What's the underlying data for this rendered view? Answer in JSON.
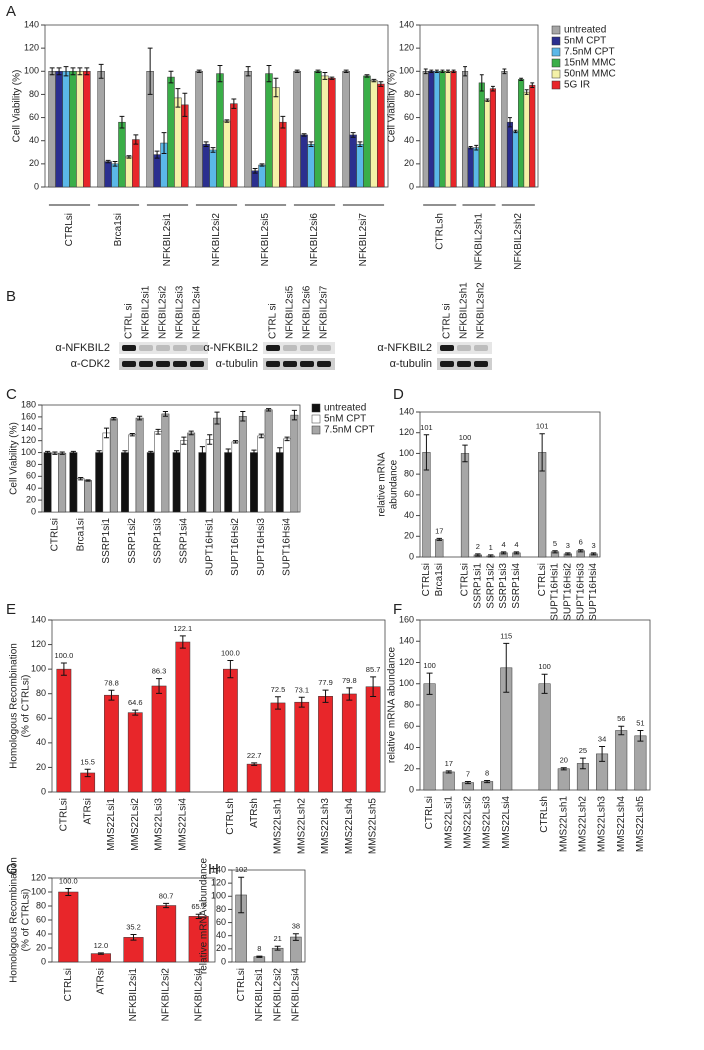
{
  "panel_letters": [
    "A",
    "B",
    "C",
    "D",
    "E",
    "F",
    "G",
    "H"
  ],
  "blots": [
    {
      "lanes": [
        "CTRL si",
        "NFKBIL2si1",
        "NFKBIL2si2",
        "NFKBIL2si3",
        "NFKBIL2si4"
      ],
      "rows": [
        "α-NFKBIL2",
        "α-CDK2"
      ]
    },
    {
      "lanes": [
        "CTRL si",
        "NFKBIL2si5",
        "NFKBIL2si6",
        "NFKBIL2si7"
      ],
      "rows": [
        "α-NFKBIL2",
        "α-tubulin"
      ]
    },
    {
      "lanes": [
        "CTRL si",
        "NFKBIL2sh1",
        "NFKBIL2sh2"
      ],
      "rows": [
        "α-NFKBIL2",
        "α-tubulin"
      ]
    }
  ],
  "chart_data": [
    {
      "type": "bar",
      "ylabel": "Cell Viability (%)",
      "categories": [
        "CTRLsi",
        "Brca1si",
        "NFKBIL2si1",
        "NFKBIL2si2",
        "NFKBIL2si5",
        "NFKBIL2si6",
        "NFKBIL2si7"
      ],
      "series": [
        {
          "name": "untreated",
          "color": "#a6a6a6",
          "values": [
            100,
            100,
            100,
            100,
            100,
            100,
            100
          ],
          "errors": [
            3,
            6,
            20,
            1,
            4,
            1,
            1
          ]
        },
        {
          "name": "5nM CPT",
          "color": "#2b2f8f",
          "values": [
            100,
            22,
            28,
            37,
            14,
            45,
            45
          ],
          "errors": [
            3,
            1,
            3,
            2,
            2,
            1,
            2
          ]
        },
        {
          "name": "7.5nM CPT",
          "color": "#5bb8e8",
          "values": [
            100,
            20,
            38,
            32,
            19,
            37,
            37
          ],
          "errors": [
            4,
            2,
            9,
            2,
            1,
            2,
            2
          ]
        },
        {
          "name": "15nM MMC",
          "color": "#3aae48",
          "values": [
            100,
            56,
            95,
            98,
            98,
            100,
            96
          ],
          "errors": [
            3,
            5,
            5,
            7,
            7,
            1,
            1
          ]
        },
        {
          "name": "50nM MMC",
          "color": "#f4f1a8",
          "values": [
            100,
            26,
            77,
            57,
            86,
            96,
            92
          ],
          "errors": [
            3,
            1,
            8,
            1,
            8,
            3,
            1
          ]
        },
        {
          "name": "5G IR",
          "color": "#e8262a",
          "values": [
            100,
            41,
            71,
            72,
            56,
            94,
            89
          ],
          "errors": [
            3,
            4,
            10,
            4,
            5,
            1,
            2
          ]
        }
      ],
      "ylim": [
        0,
        140
      ],
      "yticks": [
        0,
        20,
        40,
        60,
        80,
        100,
        120,
        140
      ],
      "group_lines": true
    },
    {
      "type": "bar",
      "ylabel": "Cell Viability (%)",
      "categories": [
        "CTRLsh",
        "NFKBIL2sh1",
        "NFKBIL2sh2"
      ],
      "series": [
        {
          "name": "untreated",
          "color": "#a6a6a6",
          "values": [
            100,
            100,
            100
          ],
          "errors": [
            2,
            4,
            2
          ]
        },
        {
          "name": "5nM CPT",
          "color": "#2b2f8f",
          "values": [
            100,
            34,
            56
          ],
          "errors": [
            1,
            1,
            4
          ]
        },
        {
          "name": "7.5nM CPT",
          "color": "#5bb8e8",
          "values": [
            100,
            34,
            48
          ],
          "errors": [
            1,
            2,
            1
          ]
        },
        {
          "name": "15nM MMC",
          "color": "#3aae48",
          "values": [
            100,
            90,
            93
          ],
          "errors": [
            1,
            7,
            1
          ]
        },
        {
          "name": "50nM MMC",
          "color": "#f4f1a8",
          "values": [
            100,
            75,
            82
          ],
          "errors": [
            1,
            1,
            2
          ]
        },
        {
          "name": "5G IR",
          "color": "#e8262a",
          "values": [
            100,
            85,
            88
          ],
          "errors": [
            1,
            2,
            2
          ]
        }
      ],
      "ylim": [
        0,
        140
      ],
      "yticks": [
        0,
        20,
        40,
        60,
        80,
        100,
        120,
        140
      ],
      "group_lines": true,
      "legend": "right"
    },
    {
      "type": "bar",
      "ylabel": "Cell Viability (%)",
      "categories": [
        "CTRLsi",
        "Brca1si",
        "SSRP1si1",
        "SSRP1si2",
        "SSRP1si3",
        "SSRP1si4",
        "SUPT16Hsi1",
        "SUPT16Hsi2",
        "SUPT16Hsi3",
        "SUPT16Hsi4"
      ],
      "series": [
        {
          "name": "untreated",
          "color": "#111111",
          "values": [
            100,
            100,
            100,
            100,
            100,
            100,
            100,
            100,
            100,
            100
          ],
          "errors": [
            2,
            2,
            3,
            3,
            2,
            3,
            10,
            6,
            4,
            8
          ]
        },
        {
          "name": "5nM CPT",
          "color": "#ffffff",
          "values": [
            99,
            56,
            133,
            130,
            135,
            120,
            122,
            118,
            128,
            123
          ],
          "errors": [
            2,
            2,
            8,
            2,
            4,
            6,
            8,
            2,
            3,
            3
          ]
        },
        {
          "name": "7.5nM CPT",
          "color": "#a6a6a6",
          "values": [
            99,
            53,
            157,
            158,
            165,
            133,
            158,
            161,
            172,
            163
          ],
          "errors": [
            2,
            1,
            2,
            3,
            4,
            3,
            10,
            8,
            2,
            8
          ]
        }
      ],
      "ylim": [
        0,
        180
      ],
      "yticks": [
        0,
        20,
        40,
        60,
        80,
        100,
        120,
        140,
        160,
        180
      ],
      "legend": "right"
    },
    {
      "type": "bar",
      "ylabel": [
        "relative mRNA",
        "abundance"
      ],
      "categories": [
        "CTRLsi",
        "Brca1si",
        null,
        "CTRLsi",
        "SSRP1si1",
        "SSRP1si2",
        "SSRP1si3",
        "SSRP1si4",
        null,
        "CTRLsi",
        "SUPT16Hsi1",
        "SUPT16Hsi2",
        "SUPT16Hsi3",
        "SUPT16Hsi4"
      ],
      "color": "#a6a6a6",
      "values": [
        101,
        17,
        null,
        100,
        2,
        1,
        4,
        4,
        null,
        101,
        5,
        3,
        6,
        3
      ],
      "errors": [
        17,
        1,
        null,
        8,
        1,
        1,
        1,
        1,
        null,
        18,
        1,
        1,
        1,
        1
      ],
      "ylim": [
        0,
        140
      ],
      "yticks": [
        0,
        20,
        40,
        60,
        80,
        100,
        120,
        140
      ]
    },
    {
      "type": "bar",
      "ylabel": [
        "Homologous Recombination",
        "(% of CTRLsi)"
      ],
      "categories": [
        "CTRLsi",
        "ATRsi",
        "MMS22Lsi1",
        "MMS22Lsi2",
        "MMS22Lsi3",
        "MMS22Lsi4",
        null,
        "CTRLsh",
        "ATRsh",
        "MMS22Lsh1",
        "MMS22Lsh2",
        "MMS22Lsh3",
        "MMS22Lsh4",
        "MMS22Lsh5"
      ],
      "color": "#e8262a",
      "values": [
        100,
        15.5,
        78.8,
        64.6,
        86.3,
        122.1,
        null,
        100,
        22.7,
        72.5,
        73.1,
        77.9,
        79.8,
        85.7
      ],
      "value_labels": [
        "100.0",
        "15.5",
        "78.8",
        "64.6",
        "86.3",
        "122.1",
        null,
        "100.0",
        "22.7",
        "72.5",
        "73.1",
        "77.9",
        "79.8",
        "85.7"
      ],
      "errors": [
        5,
        3,
        4,
        2,
        6,
        5,
        null,
        7,
        1,
        5,
        4,
        5,
        5,
        8
      ],
      "ylim": [
        0,
        140
      ],
      "yticks": [
        0,
        20,
        40,
        60,
        80,
        100,
        120,
        140
      ]
    },
    {
      "type": "bar",
      "ylabel": "relative mRNA abundance",
      "categories": [
        "CTRLsi",
        "MMS22Lsi1",
        "MMS22Lsi2",
        "MMS22Lsi3",
        "MMS22Lsi4",
        null,
        "CTRLsh",
        "MMS22Lsh1",
        "MMS22Lsh2",
        "MMS22Lsh3",
        "MMS22Lsh4",
        "MMS22Lsh5"
      ],
      "color": "#a6a6a6",
      "values": [
        100,
        17,
        7,
        8,
        115,
        null,
        100,
        20,
        25,
        34,
        56,
        51
      ],
      "errors": [
        10,
        1,
        1,
        1,
        23,
        null,
        9,
        1,
        5,
        7,
        4,
        5
      ],
      "ylim": [
        0,
        160
      ],
      "yticks": [
        0,
        20,
        40,
        60,
        80,
        100,
        120,
        140,
        160
      ]
    },
    {
      "type": "bar",
      "ylabel": [
        "Homologous Recombination",
        "(% of CTRLsi)"
      ],
      "categories": [
        "CTRLsi",
        "ATRsi",
        "NFKBIL2si1",
        "NFKBIL2si2",
        "NFKBIL2si4"
      ],
      "color": "#e8262a",
      "values": [
        100,
        12.0,
        35.2,
        80.7,
        65.2
      ],
      "value_labels": [
        "100.0",
        "12.0",
        "35.2",
        "80.7",
        "65.2"
      ],
      "errors": [
        5,
        1,
        4,
        3,
        3
      ],
      "ylim": [
        0,
        120
      ],
      "yticks": [
        0,
        20,
        40,
        60,
        80,
        100,
        120
      ]
    },
    {
      "type": "bar",
      "ylabel": "relative mRNA abundance",
      "categories": [
        "CTRLsi",
        "NFKBIL2si1",
        "NFKBIL2si2",
        "NFKBIL2si4"
      ],
      "color": "#a6a6a6",
      "values": [
        102,
        8,
        21,
        38
      ],
      "errors": [
        27,
        1,
        3,
        5
      ],
      "ylim": [
        0,
        140
      ],
      "yticks": [
        0,
        20,
        40,
        60,
        80,
        100,
        120,
        140
      ]
    }
  ]
}
